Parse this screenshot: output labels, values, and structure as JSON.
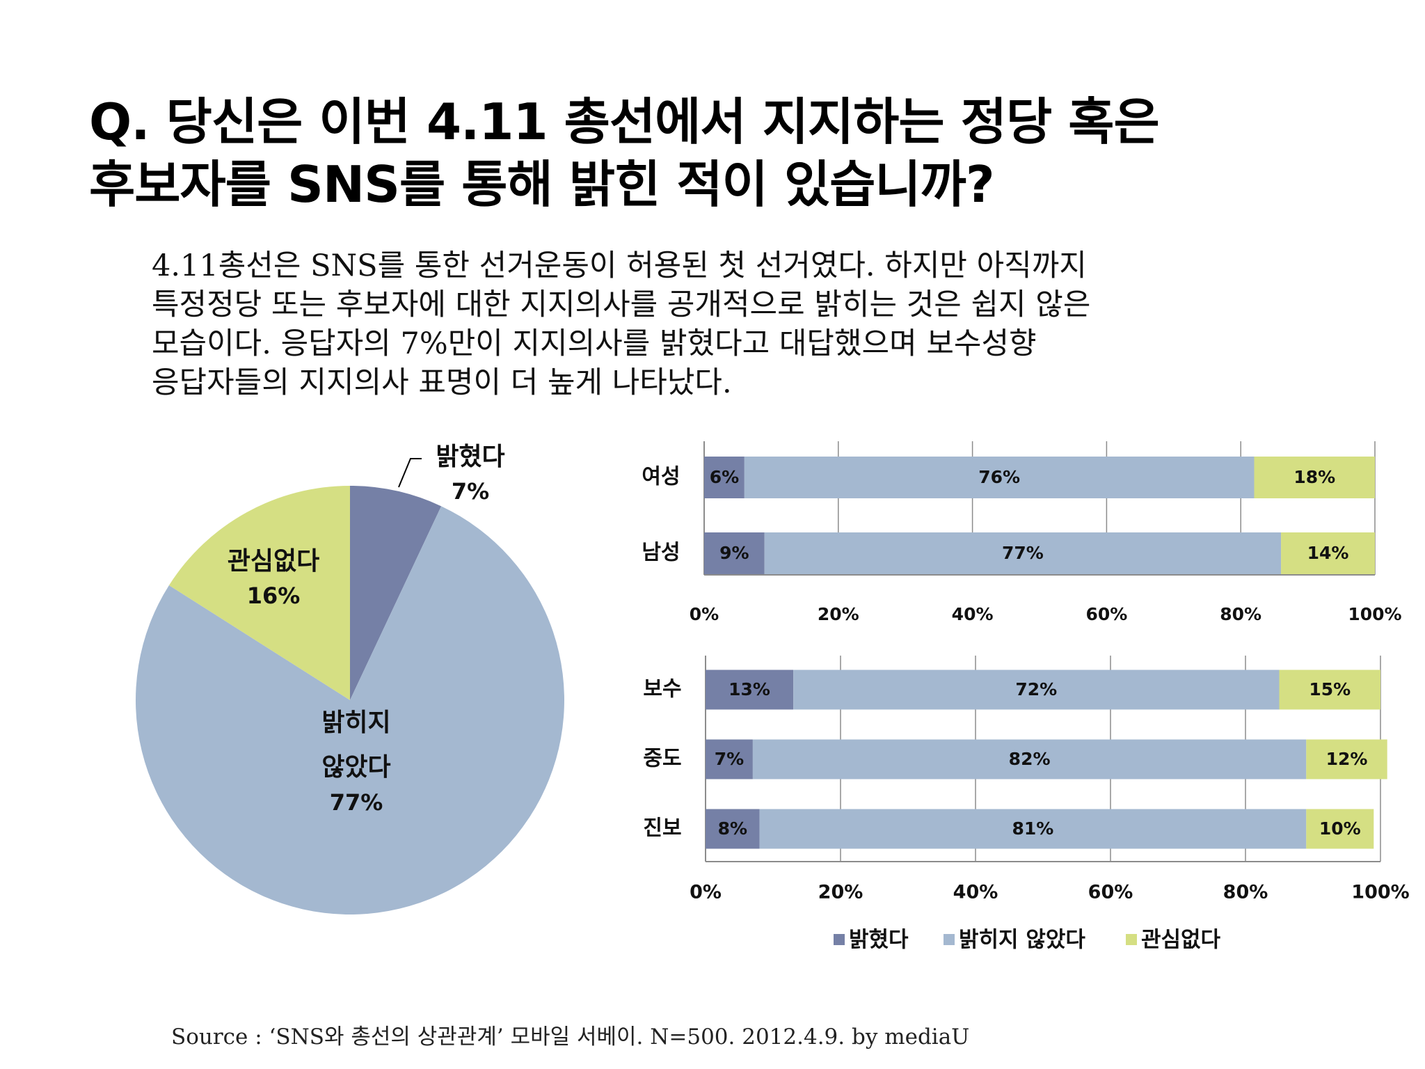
{
  "title_lines": [
    "Q. 당신은 이번 4.11 총선에서 지지하는 정당 혹은",
    "후보자를 SNS를 통해 밝힌 적이 있습니까?"
  ],
  "intro_lines": [
    "4.11총선은 SNS를 통한 선거운동이 허용된 첫 선거였다. 하지만 아직까지",
    "특정정당 또는 후보자에 대한 지지의사를 공개적으로 밝히는 것은 쉽지 않은",
    "모습이다. 응답자의 7%만이 지지의사를 밝혔다고 대답했으며 보수성향",
    "응답자들의 지지의사 표명이 더 높게 나타났다."
  ],
  "source": "Source : ‘SNS와 총선의 상관관계’ 모바일 서베이. N=500. 2012.4.9. by mediaU",
  "colors": {
    "revealed": "#7580a6",
    "not_revealed": "#a4b8d0",
    "no_interest": "#d5df83"
  },
  "chart_data": [
    {
      "type": "pie",
      "slices": [
        {
          "name": "밝혔다",
          "label": "밝혔다",
          "value": 7,
          "value_label": "7%",
          "color": "#7580a6"
        },
        {
          "name": "밝히지 않았다",
          "label": "밝히지\n않았다",
          "value": 77,
          "value_label": "77%",
          "color": "#a4b8d0"
        },
        {
          "name": "관심없다",
          "label": "관심없다",
          "value": 16,
          "value_label": "16%",
          "color": "#d5df83"
        }
      ]
    },
    {
      "type": "bar",
      "orientation": "horizontal",
      "stacked": true,
      "categories": [
        "여성",
        "남성"
      ],
      "series": [
        {
          "name": "밝혔다",
          "values": [
            6,
            9
          ],
          "color": "#7580a6"
        },
        {
          "name": "밝히지 않았다",
          "values": [
            76,
            77
          ],
          "color": "#a4b8d0"
        },
        {
          "name": "관심없다",
          "values": [
            18,
            14
          ],
          "color": "#d5df83"
        }
      ],
      "xlim": [
        0,
        100
      ],
      "xticks": [
        "0%",
        "20%",
        "40%",
        "60%",
        "80%",
        "100%"
      ],
      "grid": true
    },
    {
      "type": "bar",
      "orientation": "horizontal",
      "stacked": true,
      "categories": [
        "보수",
        "중도",
        "진보"
      ],
      "series": [
        {
          "name": "밝혔다",
          "values": [
            13,
            7,
            8
          ],
          "color": "#7580a6"
        },
        {
          "name": "밝히지 않았다",
          "values": [
            72,
            82,
            81
          ],
          "color": "#a4b8d0"
        },
        {
          "name": "관심없다",
          "values": [
            15,
            12,
            10
          ],
          "color": "#d5df83"
        }
      ],
      "xlim": [
        0,
        100
      ],
      "xticks": [
        "0%",
        "20%",
        "40%",
        "60%",
        "80%",
        "100%"
      ],
      "grid": true,
      "legend": "bottom"
    }
  ]
}
